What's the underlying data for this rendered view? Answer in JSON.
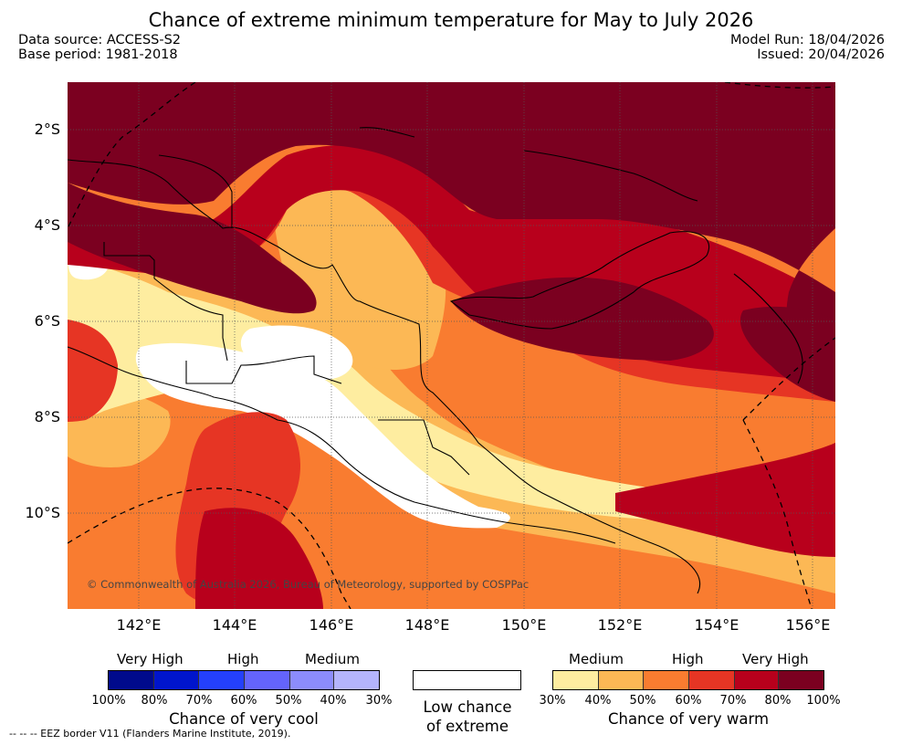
{
  "title": "Chance of extreme minimum temperature for May to July 2026",
  "header": {
    "data_source": "Data source: ACCESS-S2",
    "base_period": "Base period: 1981-2018",
    "model_run": "Model Run: 18/04/2026",
    "issued": "Issued: 20/04/2026"
  },
  "map": {
    "lat_labels": [
      "2°S",
      "4°S",
      "6°S",
      "8°S",
      "10°S"
    ],
    "lon_labels": [
      "142°E",
      "144°E",
      "146°E",
      "148°E",
      "150°E",
      "152°E",
      "154°E",
      "156°E"
    ],
    "copyright": "© Commonwealth of Australia 2026, Bureau of Meteorology, supported by COSPPac",
    "colors": {
      "pct_80_100": "#7b0020",
      "pct_70_80": "#b8001c",
      "pct_60_70": "#e63524",
      "pct_50_60": "#f97c30",
      "pct_40_50": "#fcb855",
      "pct_30_40": "#feeda0",
      "low": "#ffffff"
    }
  },
  "legend": {
    "cool": {
      "labels": [
        "Very High",
        "High",
        "Medium"
      ],
      "ticks": [
        "100%",
        "80%",
        "70%",
        "60%",
        "50%",
        "40%",
        "30%"
      ],
      "colors": [
        "#000a8c",
        "#0015cc",
        "#2440fc",
        "#6464fc",
        "#8c8cfc",
        "#b4b4fc"
      ],
      "caption": "Chance of very cool"
    },
    "low": {
      "caption_line1": "Low chance",
      "caption_line2": "of extreme"
    },
    "warm": {
      "labels": [
        "Medium",
        "High",
        "Very High"
      ],
      "ticks": [
        "30%",
        "40%",
        "50%",
        "60%",
        "70%",
        "80%",
        "100%"
      ],
      "colors": [
        "#feeda0",
        "#fcb855",
        "#f97c30",
        "#e63524",
        "#b8001c",
        "#7b0020"
      ],
      "caption": "Chance of very warm"
    },
    "eez_note": "--  --  -- EEZ border V11 (Flanders Marine Institute, 2019)."
  }
}
